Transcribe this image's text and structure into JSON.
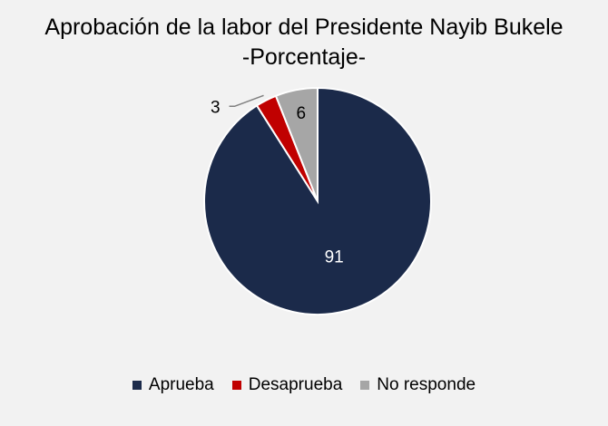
{
  "chart_data": {
    "type": "pie",
    "title": "Aprobación de la labor del Presidente Nayib Bukele",
    "subtitle": "-Porcentaje-",
    "categories": [
      "Aprueba",
      "Desaprueba",
      "No responde"
    ],
    "values": [
      91,
      3,
      6
    ],
    "colors": [
      "#1b2a4a",
      "#c00000",
      "#a6a6a6"
    ],
    "data_labels": [
      "91",
      "3",
      "6"
    ],
    "legend": "bottom"
  }
}
